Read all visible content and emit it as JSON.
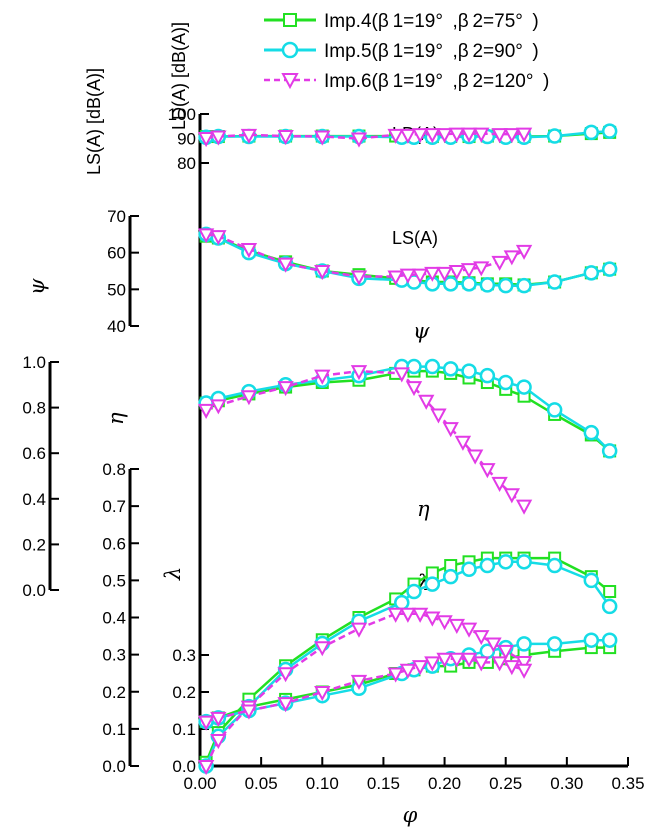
{
  "legend": [
    {
      "label": "Imp.4(β 1=19° ,β 2=75° )",
      "color": "#22e022",
      "marker": "square",
      "dash": false
    },
    {
      "label": "Imp.5(β 1=19° ,β 2=90° )",
      "color": "#15dce6",
      "marker": "circle",
      "dash": false
    },
    {
      "label": "Imp.6(β 1=19° ,β 2=120° )",
      "color": "#e23be6",
      "marker": "triangle-down",
      "dash": true
    }
  ],
  "labels": {
    "ld_curve": "LD(A)",
    "ls_curve": "LS(A)",
    "psi_curve": "ψ",
    "eta_curve": "η",
    "lambda_curve": "λ",
    "x_axis": "φ",
    "ld_axis": "LD(A) [dB(A)]",
    "ls_axis": "LS(A) [dB(A)]",
    "psi_axis": "ψ",
    "eta_axis": "η",
    "lambda_axis": "λ"
  },
  "chart_data": {
    "type": "line",
    "x_axis": {
      "label": "φ",
      "ticks": [
        "0.00",
        "0.05",
        "0.10",
        "0.15",
        "0.20",
        "0.25",
        "0.30",
        "0.35"
      ],
      "range": [
        0,
        0.35
      ]
    },
    "y_axes": [
      {
        "name": "LD(A)",
        "ticks": [
          "80",
          "90",
          "100"
        ],
        "range": [
          80,
          100
        ],
        "unit": "dB(A)"
      },
      {
        "name": "LS(A)",
        "ticks": [
          "40",
          "50",
          "60",
          "70"
        ],
        "range": [
          40,
          70
        ],
        "unit": "dB(A)"
      },
      {
        "name": "ψ",
        "ticks": [
          "0.0",
          "0.2",
          "0.4",
          "0.6",
          "0.8",
          "1.0"
        ],
        "range": [
          0,
          1.0
        ]
      },
      {
        "name": "η",
        "ticks": [
          "0.0",
          "0.1",
          "0.2",
          "0.3",
          "0.4",
          "0.5",
          "0.6",
          "0.7",
          "0.8"
        ],
        "range": [
          0,
          0.8
        ]
      },
      {
        "name": "λ",
        "ticks": [
          "0.0",
          "0.1",
          "0.2",
          "0.3"
        ],
        "range": [
          0,
          0.3
        ]
      }
    ],
    "series": [
      {
        "name": "Imp.4(β1=19°,β2=75°)",
        "LD": {
          "x": [
            0.005,
            0.015,
            0.04,
            0.07,
            0.1,
            0.13,
            0.16,
            0.175,
            0.19,
            0.205,
            0.22,
            0.235,
            0.25,
            0.265,
            0.29,
            0.32,
            0.335
          ],
          "y": [
            90.8,
            90.8,
            91.0,
            91.0,
            91.0,
            91.0,
            91.0,
            90.8,
            90.8,
            90.8,
            90.8,
            91.0,
            90.8,
            90.8,
            91.0,
            92.0,
            92.5
          ]
        },
        "LS": {
          "x": [
            0.005,
            0.015,
            0.04,
            0.07,
            0.1,
            0.13,
            0.16,
            0.175,
            0.19,
            0.205,
            0.22,
            0.235,
            0.25,
            0.265,
            0.29,
            0.32,
            0.335
          ],
          "y": [
            64.5,
            64.0,
            60.5,
            57.5,
            55.0,
            54.0,
            53.0,
            52.5,
            52.0,
            52.0,
            51.8,
            51.5,
            51.5,
            51.2,
            52.0,
            54.5,
            55.5
          ]
        },
        "psi": {
          "x": [
            0.005,
            0.015,
            0.04,
            0.07,
            0.1,
            0.13,
            0.16,
            0.175,
            0.19,
            0.205,
            0.22,
            0.235,
            0.25,
            0.265,
            0.29,
            0.32,
            0.335
          ],
          "y": [
            0.82,
            0.83,
            0.86,
            0.89,
            0.91,
            0.92,
            0.95,
            0.96,
            0.96,
            0.95,
            0.93,
            0.91,
            0.88,
            0.85,
            0.77,
            0.68,
            0.61
          ]
        },
        "eta": {
          "x": [
            0.005,
            0.015,
            0.04,
            0.07,
            0.1,
            0.13,
            0.16,
            0.175,
            0.19,
            0.205,
            0.22,
            0.235,
            0.25,
            0.265,
            0.29,
            0.32,
            0.335
          ],
          "y": [
            0.01,
            0.09,
            0.18,
            0.27,
            0.34,
            0.4,
            0.45,
            0.49,
            0.52,
            0.54,
            0.55,
            0.56,
            0.56,
            0.56,
            0.56,
            0.51,
            0.47
          ]
        },
        "lambda": {
          "x": [
            0.005,
            0.015,
            0.04,
            0.07,
            0.1,
            0.13,
            0.16,
            0.175,
            0.19,
            0.205,
            0.22,
            0.235,
            0.25,
            0.265,
            0.29,
            0.32,
            0.335
          ],
          "y": [
            0.12,
            0.13,
            0.16,
            0.18,
            0.2,
            0.22,
            0.25,
            0.26,
            0.27,
            0.27,
            0.28,
            0.28,
            0.29,
            0.3,
            0.31,
            0.32,
            0.32
          ]
        }
      },
      {
        "name": "Imp.5(β1=19°,β2=90°)",
        "LD": {
          "x": [
            0.005,
            0.015,
            0.04,
            0.07,
            0.1,
            0.13,
            0.165,
            0.175,
            0.19,
            0.205,
            0.22,
            0.235,
            0.25,
            0.265,
            0.29,
            0.32,
            0.335
          ],
          "y": [
            90.5,
            90.8,
            90.8,
            90.8,
            90.8,
            90.8,
            90.5,
            90.5,
            90.5,
            90.5,
            90.8,
            90.8,
            90.5,
            90.5,
            91.0,
            92.5,
            93.0
          ]
        },
        "LS": {
          "x": [
            0.005,
            0.015,
            0.04,
            0.07,
            0.1,
            0.13,
            0.165,
            0.175,
            0.19,
            0.205,
            0.22,
            0.235,
            0.25,
            0.265,
            0.29,
            0.32,
            0.335
          ],
          "y": [
            65.0,
            64.0,
            60.0,
            57.0,
            55.0,
            53.0,
            52.5,
            52.0,
            51.5,
            51.5,
            51.5,
            51.2,
            51.0,
            51.0,
            52.0,
            54.5,
            55.5
          ]
        },
        "psi": {
          "x": [
            0.005,
            0.015,
            0.04,
            0.07,
            0.1,
            0.13,
            0.165,
            0.175,
            0.19,
            0.205,
            0.22,
            0.235,
            0.25,
            0.265,
            0.29,
            0.32,
            0.335
          ],
          "y": [
            0.82,
            0.84,
            0.87,
            0.9,
            0.92,
            0.94,
            0.98,
            0.98,
            0.98,
            0.97,
            0.96,
            0.94,
            0.91,
            0.89,
            0.79,
            0.69,
            0.61
          ]
        },
        "eta": {
          "x": [
            0.005,
            0.015,
            0.04,
            0.07,
            0.1,
            0.13,
            0.165,
            0.175,
            0.19,
            0.205,
            0.22,
            0.235,
            0.25,
            0.265,
            0.29,
            0.32,
            0.335
          ],
          "y": [
            0.0,
            0.08,
            0.16,
            0.26,
            0.33,
            0.39,
            0.44,
            0.47,
            0.49,
            0.51,
            0.53,
            0.54,
            0.55,
            0.55,
            0.54,
            0.5,
            0.43
          ]
        },
        "lambda": {
          "x": [
            0.005,
            0.015,
            0.04,
            0.07,
            0.1,
            0.13,
            0.165,
            0.175,
            0.19,
            0.205,
            0.22,
            0.235,
            0.25,
            0.265,
            0.29,
            0.32,
            0.335
          ],
          "y": [
            0.12,
            0.13,
            0.15,
            0.17,
            0.19,
            0.21,
            0.25,
            0.26,
            0.27,
            0.29,
            0.3,
            0.31,
            0.32,
            0.33,
            0.33,
            0.34,
            0.34
          ]
        }
      },
      {
        "name": "Imp.6(β1=19°,β2=120°)",
        "LD": {
          "x": [
            0.005,
            0.015,
            0.04,
            0.07,
            0.1,
            0.13,
            0.16,
            0.17,
            0.18,
            0.19,
            0.2,
            0.21,
            0.22,
            0.23,
            0.245,
            0.255,
            0.265
          ],
          "y": [
            90.2,
            90.8,
            91.5,
            91.0,
            90.8,
            90.0,
            91.5,
            91.5,
            91.8,
            91.8,
            91.8,
            92.0,
            92.0,
            92.0,
            91.8,
            91.8,
            92.0
          ]
        },
        "LS": {
          "x": [
            0.005,
            0.015,
            0.04,
            0.07,
            0.1,
            0.13,
            0.16,
            0.17,
            0.18,
            0.19,
            0.2,
            0.21,
            0.22,
            0.23,
            0.245,
            0.255,
            0.265
          ],
          "y": [
            65.0,
            64.5,
            61.0,
            57.0,
            55.0,
            53.5,
            53.5,
            54.0,
            54.0,
            54.5,
            54.5,
            55.0,
            55.5,
            56.0,
            57.5,
            59.0,
            60.5
          ]
        },
        "psi": {
          "x": [
            0.005,
            0.015,
            0.04,
            0.07,
            0.1,
            0.13,
            0.165,
            0.175,
            0.185,
            0.195,
            0.205,
            0.215,
            0.225,
            0.235,
            0.245,
            0.255,
            0.265
          ],
          "y": [
            0.79,
            0.81,
            0.85,
            0.89,
            0.94,
            0.96,
            0.95,
            0.89,
            0.83,
            0.77,
            0.71,
            0.65,
            0.59,
            0.53,
            0.47,
            0.42,
            0.37
          ]
        },
        "eta": {
          "x": [
            0.005,
            0.015,
            0.04,
            0.07,
            0.1,
            0.13,
            0.16,
            0.17,
            0.18,
            0.19,
            0.2,
            0.21,
            0.22,
            0.23,
            0.24,
            0.25,
            0.265
          ],
          "y": [
            0.0,
            0.07,
            0.16,
            0.25,
            0.32,
            0.37,
            0.41,
            0.41,
            0.41,
            0.4,
            0.39,
            0.38,
            0.37,
            0.35,
            0.33,
            0.31,
            0.28
          ]
        },
        "lambda": {
          "x": [
            0.005,
            0.015,
            0.04,
            0.07,
            0.1,
            0.13,
            0.16,
            0.17,
            0.18,
            0.19,
            0.2,
            0.21,
            0.22,
            0.23,
            0.245,
            0.255,
            0.265
          ],
          "y": [
            0.12,
            0.13,
            0.15,
            0.17,
            0.2,
            0.23,
            0.25,
            0.26,
            0.27,
            0.28,
            0.29,
            0.29,
            0.29,
            0.28,
            0.28,
            0.27,
            0.26
          ]
        }
      }
    ]
  }
}
